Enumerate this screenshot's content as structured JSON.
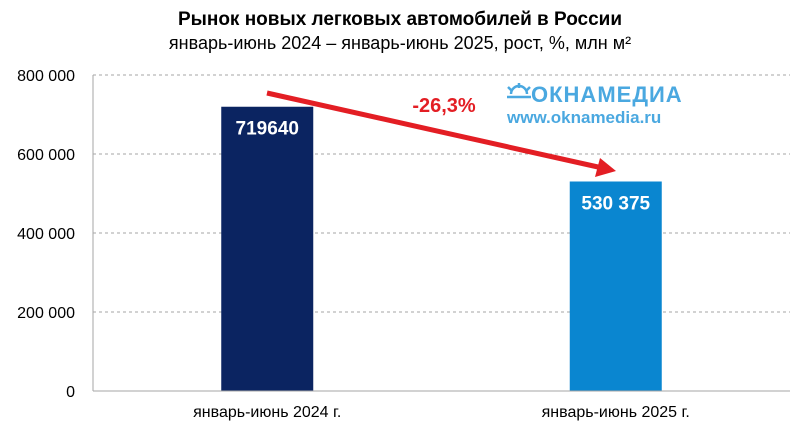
{
  "chart_data": {
    "type": "bar",
    "title": "Рынок новых легковых автомобилей в России",
    "subtitle": "январь-июнь 2024 – январь-июнь 2025, рост, %, млн м²",
    "categories": [
      "январь-июнь 2024 г.",
      "январь-июнь 2025 г."
    ],
    "values": [
      719640,
      530375
    ],
    "data_labels": [
      "719640",
      "530 375"
    ],
    "bar_colors": [
      "#0b2461",
      "#0a86d0"
    ],
    "ylim": [
      0,
      800000
    ],
    "yticks": [
      0,
      200000,
      400000,
      600000,
      800000
    ],
    "ytick_labels": [
      "0",
      "200 000",
      "400 000",
      "600 000",
      "800 000"
    ],
    "grid": true,
    "annotation": {
      "text": "-26,3%",
      "color": "#e31e24"
    }
  },
  "watermark": {
    "logo": "ОКНАМЕДИА",
    "url": "www.oknamedia.ru",
    "color": "#4aa8e0"
  }
}
